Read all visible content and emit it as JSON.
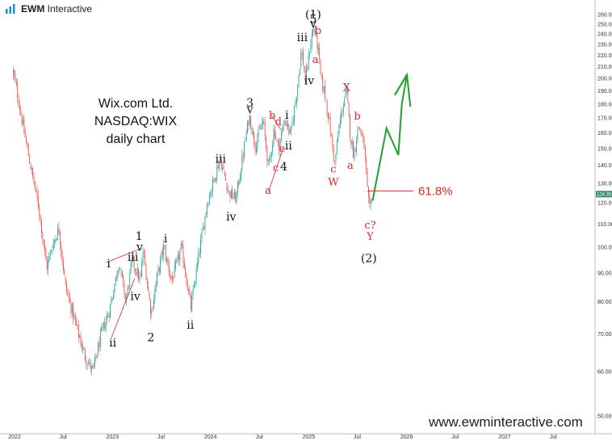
{
  "logo": {
    "brand": "EWM",
    "name": "Interactive",
    "icon": "bar-chart-logo-icon"
  },
  "title_lines": [
    "Wix.com Ltd.",
    "NASDAQ:WIX",
    "daily chart"
  ],
  "watermark": "www.ewminteractive.com",
  "colors": {
    "bull": "#26a69a",
    "bear": "#ef5350",
    "wave_red": "#d9262c",
    "projection": "#1fa12e",
    "price_tag": "#3d8f6e"
  },
  "chart_data": {
    "type": "candlestick",
    "y_axis": {
      "ticks": [
        "260.00",
        "250.00",
        "240.00",
        "230.00",
        "220.00",
        "210.00",
        "200.00",
        "190.00",
        "180.00",
        "170.00",
        "160.00",
        "150.00",
        "140.00",
        "130.00",
        "120.00",
        "110.00",
        "100.00",
        "90.00",
        "80.00",
        "70.00",
        "60.00",
        "50.00"
      ],
      "min": 48,
      "max": 265,
      "scale": "log"
    },
    "x_axis": {
      "ticks": [
        "2022",
        "Jul",
        "2023",
        "Jul",
        "2024",
        "Jul",
        "2025",
        "Jul",
        "2026",
        "Jul",
        "2027",
        "Jul"
      ]
    },
    "last_price_label": "124.35",
    "last_price": 124.35,
    "price_path": [
      [
        "2021-12-27",
        205
      ],
      [
        "2022-01-10",
        190
      ],
      [
        "2022-02-01",
        165
      ],
      [
        "2022-03-01",
        140
      ],
      [
        "2022-04-01",
        118
      ],
      [
        "2022-05-01",
        92
      ],
      [
        "2022-05-20",
        100
      ],
      [
        "2022-06-15",
        108
      ],
      [
        "2022-07-10",
        85
      ],
      [
        "2022-08-20",
        72
      ],
      [
        "2022-09-20",
        64
      ],
      [
        "2022-10-20",
        60
      ],
      [
        "2022-11-20",
        70
      ],
      [
        "2022-12-20",
        77
      ],
      [
        "2023-01-25",
        94
      ],
      [
        "2023-02-20",
        80
      ],
      [
        "2023-03-15",
        95
      ],
      [
        "2023-04-15",
        87
      ],
      [
        "2023-04-25",
        99
      ],
      [
        "2023-05-25",
        76
      ],
      [
        "2023-06-15",
        88
      ],
      [
        "2023-07-10",
        100
      ],
      [
        "2023-08-10",
        87
      ],
      [
        "2023-09-15",
        100
      ],
      [
        "2023-10-20",
        78
      ],
      [
        "2023-11-20",
        98
      ],
      [
        "2023-12-20",
        120
      ],
      [
        "2024-02-05",
        144
      ],
      [
        "2024-03-10",
        125
      ],
      [
        "2024-04-05",
        122
      ],
      [
        "2024-05-05",
        150
      ],
      [
        "2024-05-25",
        172
      ],
      [
        "2024-06-15",
        152
      ],
      [
        "2024-07-15",
        168
      ],
      [
        "2024-08-05",
        138
      ],
      [
        "2024-08-25",
        163
      ],
      [
        "2024-09-10",
        150
      ],
      [
        "2024-10-05",
        170
      ],
      [
        "2024-10-25",
        158
      ],
      [
        "2024-11-15",
        185
      ],
      [
        "2024-12-05",
        225
      ],
      [
        "2024-12-20",
        198
      ],
      [
        "2025-01-10",
        235
      ],
      [
        "2025-01-20",
        248
      ],
      [
        "2025-02-05",
        226
      ],
      [
        "2025-02-15",
        200
      ],
      [
        "2025-03-05",
        185
      ],
      [
        "2025-03-20",
        165
      ],
      [
        "2025-04-08",
        141
      ],
      [
        "2025-04-25",
        165
      ],
      [
        "2025-05-10",
        180
      ],
      [
        "2025-05-22",
        190
      ],
      [
        "2025-06-05",
        158
      ],
      [
        "2025-06-18",
        146
      ],
      [
        "2025-07-05",
        165
      ],
      [
        "2025-07-15",
        160
      ],
      [
        "2025-07-28",
        150
      ],
      [
        "2025-08-06",
        128
      ],
      [
        "2025-08-15",
        116
      ],
      [
        "2025-08-25",
        124.35
      ]
    ],
    "annotations": [
      {
        "text": "(1)",
        "date": "2025-01-18",
        "price": 256,
        "kind": "black"
      },
      {
        "text": "5",
        "date": "2025-01-18",
        "price": 251,
        "kind": "black"
      },
      {
        "text": "v",
        "date": "2025-01-18",
        "price": 246.5,
        "kind": "black"
      },
      {
        "text": "iii",
        "date": "2024-12-08",
        "price": 233,
        "kind": "black"
      },
      {
        "text": "iv",
        "date": "2025-01-03",
        "price": 195,
        "kind": "black"
      },
      {
        "text": "b",
        "date": "2025-02-05",
        "price": 240,
        "kind": "red"
      },
      {
        "text": "a",
        "date": "2025-01-26",
        "price": 213,
        "kind": "red"
      },
      {
        "text": "X",
        "date": "2025-05-22",
        "price": 190,
        "kind": "red"
      },
      {
        "text": "b",
        "date": "2025-07-01",
        "price": 169,
        "kind": "red"
      },
      {
        "text": "c",
        "date": "2025-04-03",
        "price": 136,
        "kind": "red"
      },
      {
        "text": "W",
        "date": "2025-04-03",
        "price": 129,
        "kind": "red"
      },
      {
        "text": "a",
        "date": "2025-06-05",
        "price": 138,
        "kind": "red"
      },
      {
        "text": "c?",
        "date": "2025-08-18",
        "price": 108,
        "kind": "red"
      },
      {
        "text": "Y",
        "date": "2025-08-18",
        "price": 103,
        "kind": "red"
      },
      {
        "text": "(2)",
        "date": "2025-08-13",
        "price": 94,
        "kind": "black"
      },
      {
        "text": "3",
        "date": "2024-05-27",
        "price": 178,
        "kind": "black"
      },
      {
        "text": "v",
        "date": "2024-05-27",
        "price": 173.5,
        "kind": "black"
      },
      {
        "text": "b",
        "date": "2024-08-18",
        "price": 169.5,
        "kind": "red"
      },
      {
        "text": "d",
        "date": "2024-09-10",
        "price": 165,
        "kind": "red"
      },
      {
        "text": "i",
        "date": "2024-10-12",
        "price": 169.5,
        "kind": "black"
      },
      {
        "text": "e",
        "date": "2024-09-24",
        "price": 148,
        "kind": "red"
      },
      {
        "text": "ii",
        "date": "2024-10-18",
        "price": 149.5,
        "kind": "black"
      },
      {
        "text": "c",
        "date": "2024-09-01",
        "price": 136.5,
        "kind": "red"
      },
      {
        "text": "4",
        "date": "2024-09-30",
        "price": 137,
        "kind": "black"
      },
      {
        "text": "a",
        "date": "2024-08-03",
        "price": 124.5,
        "kind": "red"
      },
      {
        "text": "iii",
        "date": "2024-02-08",
        "price": 141.5,
        "kind": "black"
      },
      {
        "text": "iv",
        "date": "2024-03-18",
        "price": 111.5,
        "kind": "black"
      },
      {
        "text": "1",
        "date": "2023-04-10",
        "price": 103,
        "kind": "black"
      },
      {
        "text": "v",
        "date": "2023-04-12",
        "price": 98.5,
        "kind": "black"
      },
      {
        "text": "iii",
        "date": "2023-03-18",
        "price": 94.5,
        "kind": "black"
      },
      {
        "text": "i",
        "date": "2022-12-18",
        "price": 92,
        "kind": "black"
      },
      {
        "text": "iv",
        "date": "2023-03-27",
        "price": 80.5,
        "kind": "black"
      },
      {
        "text": "ii",
        "date": "2023-01-02",
        "price": 66.5,
        "kind": "black"
      },
      {
        "text": "2",
        "date": "2023-05-24",
        "price": 68,
        "kind": "black"
      },
      {
        "text": "i",
        "date": "2023-07-18",
        "price": 102,
        "kind": "black"
      },
      {
        "text": "ii",
        "date": "2023-10-18",
        "price": 71.5,
        "kind": "black"
      }
    ],
    "fib_label": "61.8%",
    "fib_level_price": 126,
    "projection_path": [
      [
        "2025-08-27",
        121
      ],
      [
        "2025-10-18",
        163
      ],
      [
        "2025-12-01",
        146
      ],
      [
        "2025-12-14",
        180
      ],
      [
        "2026-01-02",
        203
      ],
      [
        "2026-01-15",
        178
      ]
    ]
  }
}
